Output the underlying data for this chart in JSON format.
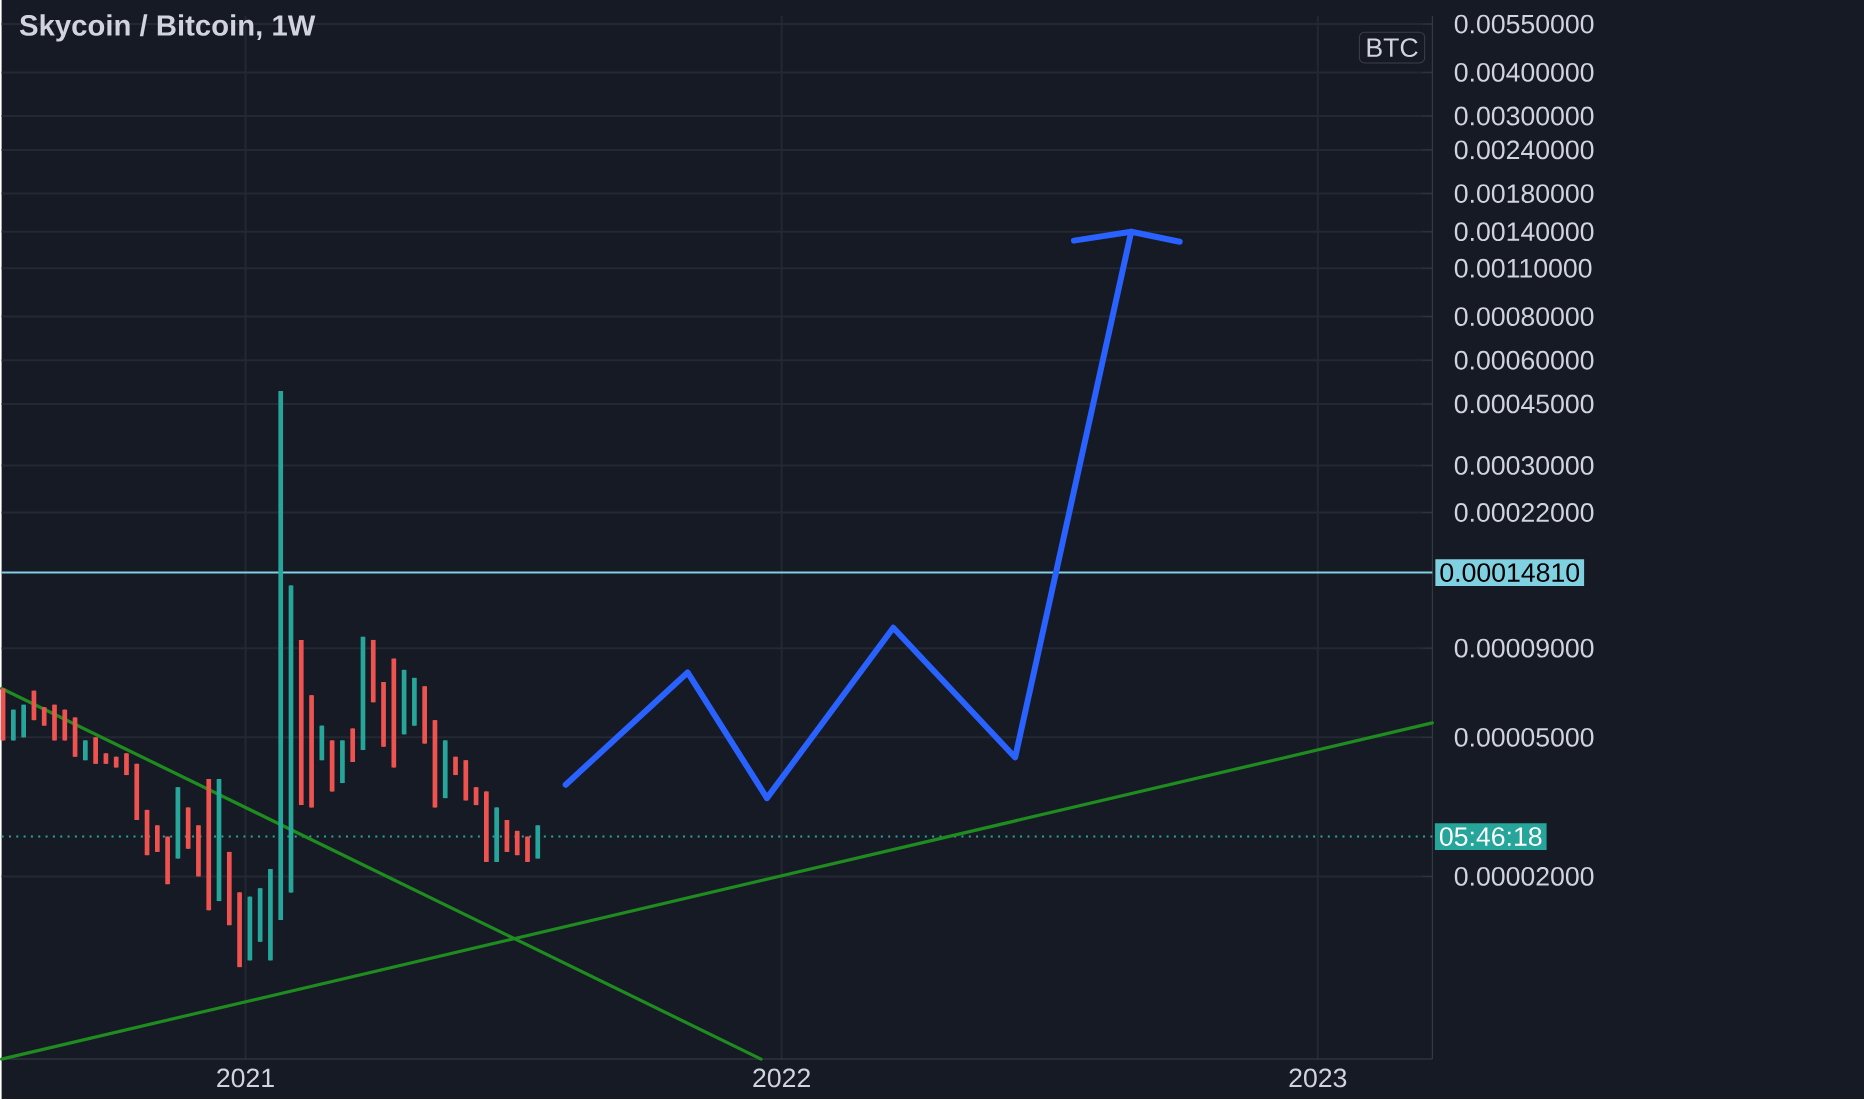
{
  "chart_data": {
    "type": "candlestick",
    "title": "Skycoin / Bitcoin, 1W",
    "ylabel": "BTC",
    "x": [
      "2020-07-20",
      "2020-07-27",
      "2020-08-03",
      "2020-08-10",
      "2020-08-17",
      "2020-08-24",
      "2020-08-31",
      "2020-09-07",
      "2020-09-14",
      "2020-09-21",
      "2020-09-28",
      "2020-10-05",
      "2020-10-12",
      "2020-10-19",
      "2020-10-26",
      "2020-11-02",
      "2020-11-09",
      "2020-11-16",
      "2020-11-23",
      "2020-11-30",
      "2020-12-07",
      "2020-12-14",
      "2020-12-21",
      "2020-12-28",
      "2021-01-04",
      "2021-01-11",
      "2021-01-18",
      "2021-01-25",
      "2021-02-01",
      "2021-02-08",
      "2021-02-15",
      "2021-02-22",
      "2021-03-01",
      "2021-03-08",
      "2021-03-15",
      "2021-03-22",
      "2021-03-29",
      "2021-04-05",
      "2021-04-12",
      "2021-04-19",
      "2021-04-26",
      "2021-05-03",
      "2021-05-10",
      "2021-05-17",
      "2021-05-24",
      "2021-05-31",
      "2021-06-07",
      "2021-06-14",
      "2021-06-21",
      "2021-06-28",
      "2021-07-05",
      "2021-07-12",
      "2021-07-19"
    ],
    "ohlc": [
      [
        6.9e-05,
        6.9e-05,
        4.9e-05,
        4.9e-05
      ],
      [
        4.9e-05,
        6e-05,
        4.9e-05,
        6e-05
      ],
      [
        5e-05,
        6.2e-05,
        5e-05,
        6.2e-05
      ],
      [
        6.8e-05,
        6.8e-05,
        5.6e-05,
        5.6e-05
      ],
      [
        6.1e-05,
        6.1e-05,
        5.4e-05,
        5.4e-05
      ],
      [
        6.2e-05,
        6.2e-05,
        4.9e-05,
        4.9e-05
      ],
      [
        6e-05,
        6e-05,
        4.9e-05,
        4.9e-05
      ],
      [
        5.7e-05,
        5.7e-05,
        4.4e-05,
        4.4e-05
      ],
      [
        4.3e-05,
        4.9e-05,
        4.3e-05,
        4.9e-05
      ],
      [
        5e-05,
        5e-05,
        4.2e-05,
        4.2e-05
      ],
      [
        4.5e-05,
        4.5e-05,
        4.2e-05,
        4.2e-05
      ],
      [
        4.4e-05,
        4.4e-05,
        4.1e-05,
        4.1e-05
      ],
      [
        4.5e-05,
        4.5e-05,
        3.9e-05,
        3.9e-05
      ],
      [
        4.2e-05,
        4.2e-05,
        2.9e-05,
        2.9e-05
      ],
      [
        3.1e-05,
        3.1e-05,
        2.3e-05,
        2.3e-05
      ],
      [
        2.8e-05,
        2.8e-05,
        2.35e-05,
        2.35e-05
      ],
      [
        2.6e-05,
        2.6e-05,
        1.9e-05,
        1.9e-05
      ],
      [
        2.25e-05,
        3.6e-05,
        2.25e-05,
        3.6e-05
      ],
      [
        3.15e-05,
        3.15e-05,
        2.4e-05,
        2.4e-05
      ],
      [
        2.8e-05,
        2.8e-05,
        2e-05,
        2e-05
      ],
      [
        3.8e-05,
        3.8e-05,
        1.6e-05,
        1.6e-05
      ],
      [
        1.7e-05,
        3.8e-05,
        1.7e-05,
        3.8e-05
      ],
      [
        2.35e-05,
        2.35e-05,
        1.45e-05,
        1.45e-05
      ],
      [
        1.8e-05,
        1.8e-05,
        1.1e-05,
        1.1e-05
      ],
      [
        1.15e-05,
        1.75e-05,
        1.15e-05,
        1.75e-05
      ],
      [
        1.3e-05,
        1.85e-05,
        1.3e-05,
        1.85e-05
      ],
      [
        1.15e-05,
        2.1e-05,
        1.15e-05,
        2.1e-05
      ],
      [
        1.5e-05,
        0.00049,
        1.5e-05,
        0.00049
      ],
      [
        1.8e-05,
        0.000136,
        1.8e-05,
        0.000136
      ],
      [
        9.5e-05,
        9.5e-05,
        3.2e-05,
        3.2e-05
      ],
      [
        6.6e-05,
        6.6e-05,
        3.15e-05,
        3.15e-05
      ],
      [
        4.3e-05,
        5.4e-05,
        4.3e-05,
        5.4e-05
      ],
      [
        4.9e-05,
        4.9e-05,
        3.5e-05,
        3.5e-05
      ],
      [
        3.7e-05,
        4.9e-05,
        3.7e-05,
        4.9e-05
      ],
      [
        5.3e-05,
        5.3e-05,
        4.25e-05,
        4.25e-05
      ],
      [
        4.6e-05,
        9.7e-05,
        4.6e-05,
        9.7e-05
      ],
      [
        9.5e-05,
        9.5e-05,
        6.3e-05,
        6.3e-05
      ],
      [
        7.2e-05,
        7.2e-05,
        4.7e-05,
        4.7e-05
      ],
      [
        8.4e-05,
        8.4e-05,
        4.1e-05,
        4.1e-05
      ],
      [
        5.1e-05,
        7.8e-05,
        5.1e-05,
        7.8e-05
      ],
      [
        5.4e-05,
        7.4e-05,
        5.4e-05,
        7.4e-05
      ],
      [
        7e-05,
        7e-05,
        4.8e-05,
        4.8e-05
      ],
      [
        5.6e-05,
        5.6e-05,
        3.15e-05,
        3.15e-05
      ],
      [
        3.35e-05,
        4.9e-05,
        3.35e-05,
        4.9e-05
      ],
      [
        4.4e-05,
        4.4e-05,
        3.9e-05,
        3.9e-05
      ],
      [
        4.3e-05,
        4.3e-05,
        3.3e-05,
        3.3e-05
      ],
      [
        3.6e-05,
        3.6e-05,
        3.2e-05,
        3.2e-05
      ],
      [
        3.5e-05,
        3.5e-05,
        2.2e-05,
        2.2e-05
      ],
      [
        2.2e-05,
        3.15e-05,
        2.2e-05,
        3.15e-05
      ],
      [
        2.9e-05,
        2.9e-05,
        2.35e-05,
        2.35e-05
      ],
      [
        2.7e-05,
        2.7e-05,
        2.3e-05,
        2.3e-05
      ],
      [
        2.6e-05,
        2.6e-05,
        2.2e-05,
        2.2e-05
      ],
      [
        2.25e-05,
        2.8e-05,
        2.25e-05,
        2.8e-05
      ]
    ],
    "colors": [
      "#ef5350",
      "#26a69a",
      "#26a69a",
      "#ef5350",
      "#ef5350",
      "#ef5350",
      "#ef5350",
      "#ef5350",
      "#26a69a",
      "#ef5350",
      "#ef5350",
      "#ef5350",
      "#ef5350",
      "#ef5350",
      "#ef5350",
      "#ef5350",
      "#ef5350",
      "#26a69a",
      "#ef5350",
      "#ef5350",
      "#ef5350",
      "#26a69a",
      "#ef5350",
      "#ef5350",
      "#26a69a",
      "#26a69a",
      "#26a69a",
      "#26a69a",
      "#26a69a",
      "#ef5350",
      "#ef5350",
      "#26a69a",
      "#ef5350",
      "#26a69a",
      "#ef5350",
      "#26a69a",
      "#ef5350",
      "#ef5350",
      "#ef5350",
      "#26a69a",
      "#26a69a",
      "#ef5350",
      "#ef5350",
      "#26a69a",
      "#ef5350",
      "#ef5350",
      "#ef5350",
      "#ef5350",
      "#26a69a",
      "#ef5350",
      "#ef5350",
      "#ef5350",
      "#26a69a"
    ],
    "series": [
      {
        "type": "line",
        "color": "#1e8c1e",
        "x": [
          "2020-07-19",
          "2021-12-18"
        ],
        "values": [
          6.9e-05,
          6e-06
        ]
      },
      {
        "type": "line",
        "color": "#1e8c1e",
        "x": [
          "2020-07-19",
          "2023-03-20"
        ],
        "values": [
          6e-06,
          5.5e-05
        ]
      },
      {
        "type": "line",
        "color": "#2962ff",
        "x": [
          "2021-08-07",
          "2021-10-29",
          "2021-12-22",
          "2022-03-18",
          "2022-06-09",
          "2022-08-27"
        ],
        "values": [
          3.66e-05,
          7.67e-05,
          3.35e-05,
          0.000103,
          4.38e-05,
          0.0014
        ]
      },
      {
        "type": "line",
        "color": "#2962ff",
        "x": [
          "2022-07-19",
          "2022-08-27",
          "2022-09-29"
        ],
        "values": [
          0.00132,
          0.0014,
          0.00131
        ]
      }
    ],
    "ref_lines": [
      {
        "axis": "y",
        "value": 0.0001481,
        "label": "0.00014810",
        "color": "#7fd0e0",
        "line_style": "solid"
      },
      {
        "axis": "y",
        "value": 2.6e-05,
        "color": "#26a69a",
        "line_style": "dotted"
      }
    ],
    "annotations": [
      "05:46:18"
    ],
    "log": true,
    "grid": true,
    "xlim": [
      "2020-07-19",
      "2023-03-20"
    ],
    "xticks": [
      "2021",
      "2022",
      "2023"
    ],
    "ylim": [
      6e-06,
      0.0058
    ],
    "yticks": [
      {
        "value": 0.0055,
        "label": "0.00550000"
      },
      {
        "value": 0.004,
        "label": "0.00400000"
      },
      {
        "value": 0.003,
        "label": "0.00300000"
      },
      {
        "value": 0.0024,
        "label": "0.00240000"
      },
      {
        "value": 0.0018,
        "label": "0.00180000"
      },
      {
        "value": 0.0014,
        "label": "0.00140000"
      },
      {
        "value": 0.0011,
        "label": "0.00110000"
      },
      {
        "value": 0.0008,
        "label": "0.00080000"
      },
      {
        "value": 0.0006,
        "label": "0.00060000"
      },
      {
        "value": 0.00045,
        "label": "0.00045000"
      },
      {
        "value": 0.0003,
        "label": "0.00030000"
      },
      {
        "value": 0.00022,
        "label": "0.00022000"
      },
      {
        "value": 9e-05,
        "label": "0.00009000"
      },
      {
        "value": 5e-05,
        "label": "0.00005000"
      },
      {
        "value": 2e-05,
        "label": "0.00002000"
      }
    ]
  }
}
